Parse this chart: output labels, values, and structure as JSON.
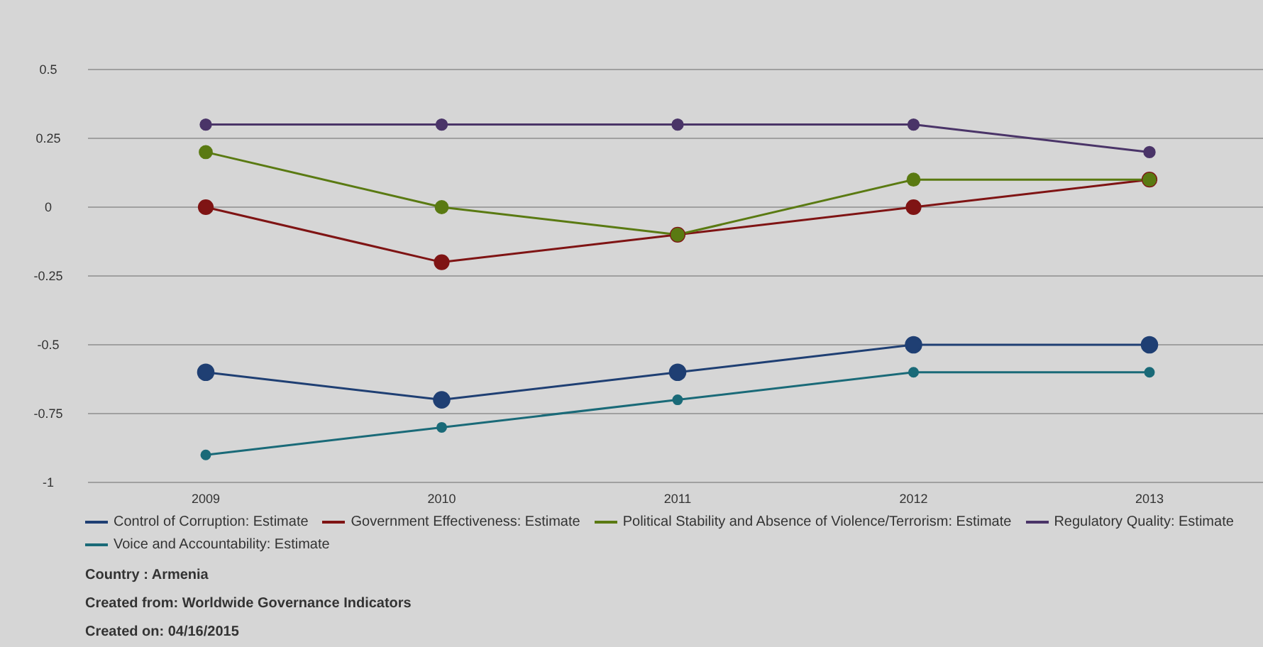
{
  "chart_data": {
    "type": "line",
    "categories": [
      "2009",
      "2010",
      "2011",
      "2012",
      "2013"
    ],
    "series": [
      {
        "name": "Control of Corruption: Estimate",
        "color": "#1f3f73",
        "values": [
          -0.6,
          -0.7,
          -0.6,
          -0.5,
          -0.5
        ]
      },
      {
        "name": "Government Effectiveness: Estimate",
        "color": "#7f1414",
        "values": [
          0,
          -0.2,
          -0.1,
          0,
          0.1
        ]
      },
      {
        "name": "Political Stability and Absence of Violence/Terrorism: Estimate",
        "color": "#5a7a12",
        "values": [
          0.2,
          0,
          -0.1,
          0.1,
          0.1
        ]
      },
      {
        "name": "Regulatory Quality: Estimate",
        "color": "#4a3468",
        "values": [
          0.3,
          0.3,
          0.3,
          0.3,
          0.2
        ]
      },
      {
        "name": "Voice and Accountability: Estimate",
        "color": "#1a6a78",
        "values": [
          -0.9,
          -0.8,
          -0.7,
          -0.6,
          -0.6
        ]
      }
    ],
    "ylim": [
      -1,
      0.5
    ],
    "yticks": [
      -1,
      -0.75,
      -0.5,
      -0.25,
      0,
      0.25,
      0.5
    ],
    "grid": "y",
    "legend": "bottom",
    "marker": "circle",
    "line_style": "solid",
    "annotations": [
      "Country : Armenia",
      "Created from: Worldwide Governance Indicators",
      "Created on: 04/16/2015"
    ]
  }
}
